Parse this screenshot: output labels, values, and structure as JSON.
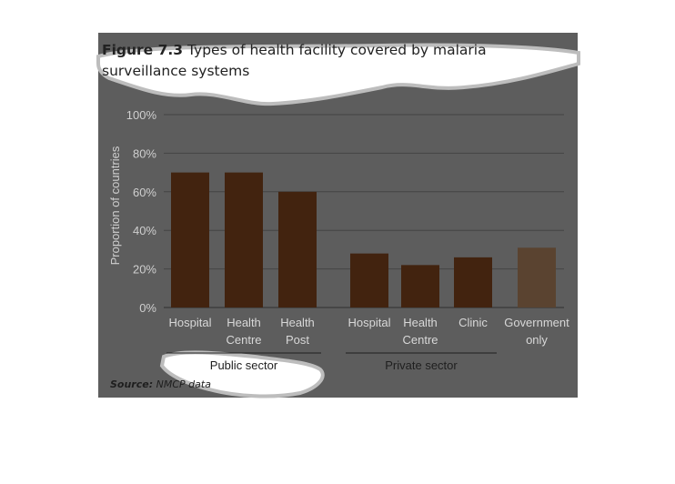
{
  "figure": {
    "number": "Figure 7.3",
    "title": "Types of health facility covered by malaria surveillance systems"
  },
  "source": {
    "label": "Source:",
    "text": "NMCP data"
  },
  "colors": {
    "panel": "#5d5d5d",
    "bar_primary": "#42230f",
    "bar_government": "#5a4330",
    "gridline": "#444444"
  },
  "chart_data": {
    "type": "bar",
    "ylabel": "Proportion of countries",
    "ylim": [
      0,
      100
    ],
    "yticks": [
      "0%",
      "20%",
      "40%",
      "60%",
      "80%",
      "100%"
    ],
    "grid": true,
    "categories": [
      [
        "Hospital"
      ],
      [
        "Health",
        "Centre"
      ],
      [
        "Health",
        "Post"
      ],
      [
        "Hospital"
      ],
      [
        "Health",
        "Centre"
      ],
      [
        "Clinic"
      ],
      [
        "Government",
        "only"
      ]
    ],
    "values": [
      70,
      70,
      60,
      28,
      22,
      26,
      31
    ],
    "groups": [
      {
        "label": "Public sector",
        "members": [
          0,
          1,
          2
        ]
      },
      {
        "label": "Private sector",
        "members": [
          3,
          4,
          5
        ]
      }
    ]
  }
}
